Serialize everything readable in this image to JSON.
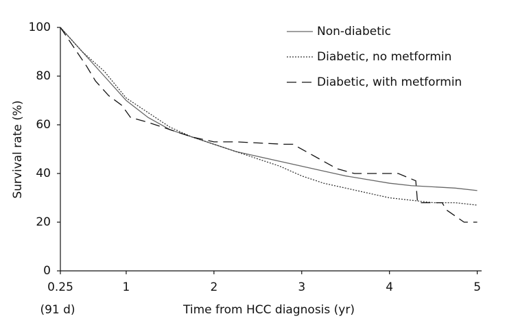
{
  "chart_data": {
    "type": "line",
    "x_label": "Time from HCC diagnosis (yr)",
    "y_label": "Survival rate (%)",
    "x_tick_note": "(91 d)",
    "xlim": [
      0.25,
      5.05
    ],
    "ylim": [
      0,
      100
    ],
    "xticks": [
      {
        "value": 0.25,
        "label": "0.25"
      },
      1,
      2,
      3,
      4,
      5
    ],
    "yticks": [
      0,
      20,
      40,
      60,
      80,
      100
    ],
    "grid": false,
    "legend": "upper right",
    "series": [
      {
        "name": "Non-diabetic",
        "color": "#666666",
        "dash": "solid",
        "x": [
          0.25,
          0.5,
          0.75,
          1,
          1.25,
          1.5,
          1.75,
          2,
          2.25,
          2.5,
          2.75,
          3,
          3.25,
          3.5,
          3.75,
          4,
          4.25,
          4.5,
          4.75,
          5
        ],
        "values": [
          100,
          90,
          80,
          70,
          63,
          58,
          55,
          52,
          49,
          47,
          45,
          43,
          41,
          39,
          37.5,
          36,
          35,
          34.5,
          34,
          33
        ]
      },
      {
        "name": "Diabetic, no metformin",
        "color": "#333333",
        "dash": "dotted",
        "x": [
          0.25,
          0.5,
          0.75,
          1,
          1.25,
          1.5,
          1.75,
          2,
          2.25,
          2.5,
          2.75,
          3,
          3.25,
          3.5,
          3.75,
          4,
          4.25,
          4.5,
          4.75,
          5
        ],
        "values": [
          100,
          90,
          82,
          71,
          65,
          59,
          55,
          52,
          49,
          46,
          43,
          39,
          36,
          34,
          32,
          30,
          29,
          28,
          28,
          27
        ]
      },
      {
        "name": "Diabetic, with metformin",
        "color": "#111111",
        "dash": "dashed",
        "x": [
          0.25,
          0.4,
          0.55,
          0.65,
          0.8,
          0.95,
          1.05,
          1.25,
          1.5,
          1.75,
          2,
          2.25,
          2.8,
          2.9,
          3.1,
          3.4,
          3.6,
          4.1,
          4.3,
          4.32,
          4.6,
          4.65,
          4.85,
          5
        ],
        "values": [
          100,
          92,
          84,
          78,
          72,
          68,
          63,
          61,
          58,
          55,
          53,
          53,
          52,
          52,
          48,
          42,
          40,
          40,
          37,
          28,
          28,
          25,
          20,
          20
        ]
      }
    ]
  }
}
